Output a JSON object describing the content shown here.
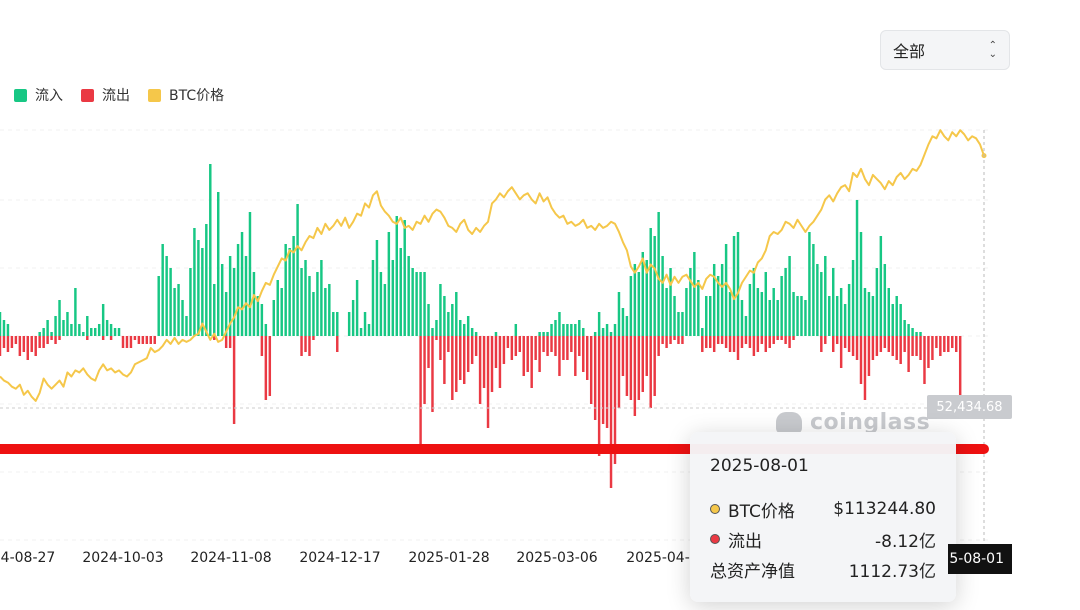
{
  "legend": {
    "inflow_label": "流入",
    "outflow_label": "流出",
    "price_label": "BTC价格"
  },
  "select": {
    "value": "全部"
  },
  "tooltip": {
    "date": "2025-08-01",
    "price_label": "BTC价格",
    "price_value": "$113244.80",
    "flow_label": "流出",
    "flow_value": "-8.12亿",
    "nav_label": "总资产净值",
    "nav_value": "1112.73亿"
  },
  "price_tag": "52,434.68",
  "date_tag": "5-08-01",
  "watermark": "coinglass",
  "colors": {
    "inflow": "#17c784",
    "outflow": "#ea3943",
    "price": "#f5c74a",
    "highlight_line": "#ee1111"
  },
  "chart_data": {
    "type": "bar",
    "x_tick_labels": [
      "4-08-27",
      "2024-10-03",
      "2024-11-08",
      "2024-12-17",
      "2025-01-28",
      "2025-03-06",
      "2025-04-"
    ],
    "series": [
      {
        "name": "流入",
        "type": "bar",
        "values": [
          0.6,
          0.4,
          0.3,
          0,
          0,
          0,
          0,
          0,
          0,
          0,
          0.1,
          0.2,
          0.4,
          0.1,
          0.5,
          0.9,
          0.4,
          0.6,
          0.3,
          1.2,
          0.3,
          0.1,
          0.5,
          0.2,
          0.2,
          0.3,
          0.8,
          0.4,
          0.3,
          0.2,
          0.2,
          0,
          0,
          0,
          0,
          0,
          0,
          0,
          0,
          0,
          1.5,
          2.3,
          2.0,
          1.7,
          1.2,
          1.3,
          0.9,
          0.5,
          1.7,
          2.7,
          2.4,
          2.2,
          2.8,
          4.3,
          1.3,
          3.6,
          1.8,
          1.1,
          2.0,
          1.7,
          2.3,
          2.6,
          2.0,
          3.1,
          1.6,
          1.0,
          0.8,
          0.3,
          0,
          0.9,
          1.4,
          1.2,
          2.3,
          2.2,
          2.5,
          3.3,
          1.7,
          1.9,
          1.5,
          1.1,
          1.6,
          1.9,
          1.2,
          1.3,
          0.6,
          0.6,
          0,
          0,
          0.6,
          0.9,
          1.4,
          0.2,
          0.6,
          0.3,
          1.9,
          2.4,
          1.6,
          1.3,
          2.6,
          1.9,
          3.0,
          2.2,
          2.9,
          2.0,
          1.7,
          1.6,
          1.6,
          1.6,
          0.8,
          0.2,
          0.4,
          1.3,
          1.0,
          0.6,
          0.8,
          1.1,
          0.4,
          0.3,
          0.5,
          0.2,
          0.1,
          0,
          0,
          0,
          0,
          0.1,
          0,
          0,
          0,
          0,
          0.3,
          0,
          0,
          0,
          0,
          0,
          0.1,
          0.1,
          0.1,
          0.3,
          0.4,
          0.6,
          0.3,
          0.3,
          0.3,
          0.3,
          0.4,
          0.2,
          0,
          0,
          0.1,
          0.6,
          0.2,
          0.3,
          0.1,
          0.3,
          1.1,
          0.7,
          0.5,
          1.5,
          1.8,
          1.6,
          2.1,
          1.9,
          2.7,
          2.5,
          3.1,
          2.0,
          1.2,
          1.7,
          1.0,
          0.6,
          0.6,
          1.2,
          1.7,
          2.1,
          1.4,
          0.2,
          1.0,
          1.0,
          1.8,
          1.5,
          1.8,
          2.3,
          1.1,
          2.5,
          2.6,
          0.9,
          0.5,
          1.3,
          1.7,
          1.2,
          1.1,
          1.6,
          0.9,
          1.2,
          0.9,
          1.5,
          1.7,
          2.0,
          1.1,
          1.0,
          1.0,
          0.9,
          2.6,
          2.3,
          1.8,
          1.6,
          2.0,
          1.0,
          1.7,
          1.0,
          1.2,
          0.8,
          1.3,
          1.9,
          3.4,
          2.6,
          1.2,
          1.1,
          1.0,
          1.7,
          2.5,
          1.8,
          1.2,
          0.8,
          1.0,
          0.8,
          0.4,
          0.3,
          0.2,
          0.1,
          0.1,
          0
        ]
      },
      {
        "name": "流出",
        "type": "bar",
        "values": [
          -0.5,
          -0.3,
          -0.4,
          -0.3,
          -0.2,
          -0.5,
          -0.4,
          -0.6,
          -0.4,
          -0.5,
          -0.3,
          -0.3,
          -0.2,
          -0.1,
          -0.2,
          -0.1,
          0,
          0,
          0,
          0,
          0,
          0,
          -0.1,
          0,
          0,
          0,
          -0.1,
          0,
          -0.1,
          0,
          0,
          -0.3,
          -0.3,
          -0.3,
          -0.1,
          -0.2,
          -0.2,
          -0.2,
          -0.2,
          -0.2,
          0,
          0,
          0,
          0,
          0,
          0,
          0,
          0,
          0,
          0,
          0,
          0,
          0,
          0,
          -0.1,
          0,
          0,
          -0.3,
          -0.3,
          -2.2,
          0,
          0,
          0,
          0,
          0,
          0,
          -0.5,
          -1.6,
          -1.5,
          0,
          0,
          0,
          0,
          0,
          0,
          0,
          -0.5,
          -0.4,
          -0.5,
          -0.1,
          0,
          0,
          0,
          0,
          0,
          -0.4,
          0,
          0,
          0,
          0,
          0,
          0,
          0,
          0,
          0,
          0,
          0,
          0,
          0,
          0,
          0,
          0,
          0,
          0,
          0,
          0,
          -2.8,
          -1.7,
          -0.8,
          -1.9,
          -0.1,
          -0.6,
          -1.2,
          -0.4,
          -1.6,
          -1.4,
          -1.1,
          -1.2,
          -0.9,
          -0.7,
          -0.5,
          -1.7,
          -1.3,
          -2.3,
          -1.4,
          -0.8,
          -1.3,
          -0.7,
          -0.3,
          -0.6,
          -0.5,
          -0.4,
          -1.0,
          -0.9,
          -1.3,
          -0.6,
          -0.9,
          -0.4,
          -0.5,
          -0.4,
          -0.5,
          -1.0,
          -0.6,
          -0.6,
          -0.4,
          -1.0,
          -0.5,
          -0.9,
          -1.1,
          -1.7,
          -2.1,
          -3.0,
          -2.2,
          -2.3,
          -3.8,
          -3.2,
          -1.8,
          -1.0,
          -1.5,
          -1.6,
          -2.0,
          -1.6,
          -1.4,
          -1.0,
          -1.8,
          -1.5,
          -0.5,
          -0.2,
          -0.3,
          -0.2,
          -0.1,
          -0.2,
          -0.2,
          0,
          0,
          0,
          0,
          -0.4,
          -0.3,
          -0.3,
          -0.4,
          -0.2,
          -0.2,
          -0.3,
          -0.4,
          -0.4,
          -0.6,
          -0.3,
          -0.2,
          -0.3,
          -0.5,
          -0.4,
          -0.2,
          -0.4,
          -0.3,
          -0.2,
          -0.1,
          -0.1,
          -0.2,
          -0.3,
          -0.1,
          0,
          0,
          0,
          0,
          0,
          0,
          -0.4,
          -0.2,
          0,
          -0.4,
          -0.2,
          -0.8,
          -0.3,
          -0.4,
          -0.5,
          -0.6,
          -1.2,
          -1.6,
          -1.0,
          -0.6,
          -0.5,
          -0.4,
          -0.3,
          -0.4,
          -0.5,
          -0.6,
          -0.7,
          -0.4,
          -0.9,
          -0.5,
          -0.5,
          -0.6,
          -1.2,
          -0.8,
          -0.6,
          -0.3,
          -0.5,
          -0.4,
          -0.4,
          -0.3,
          -0.4,
          -1.5
        ]
      },
      {
        "name": "BTC价格",
        "type": "line",
        "values": [
          59000,
          58000,
          57500,
          56500,
          56000,
          57000,
          54500,
          55500,
          54000,
          53000,
          55000,
          58500,
          57000,
          56000,
          57000,
          58000,
          56500,
          60000,
          59000,
          60500,
          60000,
          61000,
          59500,
          58500,
          58000,
          60500,
          62000,
          60500,
          61000,
          60000,
          60500,
          59500,
          59000,
          60000,
          62000,
          62500,
          63000,
          63500,
          66000,
          65000,
          65500,
          66500,
          68000,
          67000,
          68500,
          67000,
          68000,
          67500,
          68000,
          69000,
          69500,
          72000,
          70000,
          68000,
          69500,
          67500,
          68000,
          70000,
          72000,
          73500,
          76000,
          75500,
          77000,
          76000,
          79000,
          77500,
          80000,
          82000,
          81500,
          84000,
          86000,
          88000,
          87500,
          90000,
          89500,
          91000,
          90000,
          92000,
          93500,
          93000,
          95500,
          94000,
          96500,
          95000,
          96000,
          97500,
          96000,
          98000,
          95500,
          97000,
          99000,
          98500,
          101500,
          100500,
          103500,
          104500,
          101000,
          99500,
          98500,
          97000,
          96500,
          98000,
          95500,
          96000,
          95000,
          97000,
          96500,
          98500,
          97000,
          99000,
          100000,
          99500,
          98000,
          96000,
          95500,
          94500,
          96500,
          97500,
          95000,
          94000,
          95500,
          94500,
          96000,
          97000,
          101500,
          102500,
          104000,
          103000,
          104500,
          105500,
          104000,
          102500,
          103500,
          104000,
          102500,
          101500,
          104000,
          102000,
          103000,
          100500,
          99000,
          98000,
          98500,
          96500,
          97000,
          96000,
          96500,
          97500,
          95500,
          96000,
          95000,
          96500,
          95500,
          96000,
          97000,
          96500,
          94500,
          92000,
          90000,
          86000,
          84500,
          86000,
          88000,
          84500,
          86500,
          85500,
          83000,
          82000,
          84000,
          81500,
          83500,
          82000,
          83500,
          84000,
          82500,
          81000,
          82000,
          80500,
          83000,
          84000,
          83500,
          82000,
          81000,
          82000,
          80500,
          78000,
          79500,
          82000,
          83500,
          85000,
          84500,
          87000,
          88000,
          90000,
          93500,
          94500,
          94000,
          95000,
          97000,
          96500,
          95500,
          97500,
          96000,
          94500,
          96000,
          97000,
          98500,
          100000,
          102500,
          103500,
          102000,
          104000,
          105500,
          106000,
          104500,
          109000,
          108000,
          110000,
          107500,
          106000,
          108500,
          107500,
          106500,
          105000,
          107000,
          106000,
          108000,
          109000,
          107500,
          108500,
          110000,
          109500,
          111000,
          113500,
          116000,
          118000,
          117500,
          119500,
          118000,
          117000,
          119000,
          118000,
          119500,
          118500,
          117000,
          118000,
          117500,
          116000,
          113244.8
        ]
      }
    ],
    "grid": true,
    "legend_position": "top-left"
  }
}
